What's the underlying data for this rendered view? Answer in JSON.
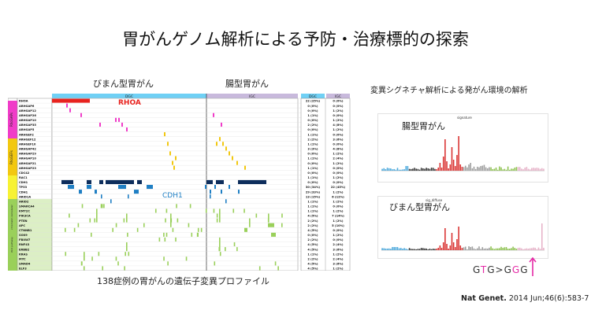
{
  "title": "胃がんゲノム解析による予防・治療標的の探索",
  "left": {
    "header_diffuse": "びまん型胃がん",
    "header_intestinal": "腸型胃がん",
    "caption": "138症例の胃がんの遺伝子変異プロファイル",
    "dgc_label": "DGC",
    "igc_label": "IGC",
    "rhoa_label": "RHOA",
    "cdh1_label": "CDH1",
    "group_labels": [
      "RhoGAPs",
      "RhoGEFs",
      "chromatin remodeler",
      "Wnt pathway"
    ],
    "genes": [
      "RHOA",
      "ARHGAP6",
      "ARHGAP12",
      "ARHGAP26",
      "ARHGAP10",
      "ARHGAP35",
      "ARHGAP5",
      "ARHGEF2",
      "ARHGEF12",
      "ARHGEF10",
      "ARHGAP42",
      "ARHGAP29",
      "ARHGAP10",
      "ARHGAP21",
      "ARHGAP23",
      "CDC42",
      "RAC1",
      "CDH1",
      "TP53",
      "CDH1",
      "ARID1A",
      "ARID2",
      "SMARCA4",
      "KMT2C",
      "PIK3CA",
      "PTEN",
      "APC",
      "CTNNB1",
      "SOX9",
      "FBXW7",
      "RNF43",
      "ERBB2",
      "KRAS",
      "MYC",
      "SMAD4",
      "ELF3"
    ],
    "dgc_counts": [
      "22 (25%)",
      "0 (0%)",
      "0 (0%)",
      "1 (1%)",
      "0 (0%)",
      "2 (2%)",
      "0 (0%)",
      "1 (1%)",
      "2 (2%)",
      "1 (1%)",
      "3 (3%)",
      "0 (0%)",
      "1 (1%)",
      "0 (0%)",
      "1 (1%)",
      "0 (0%)",
      "1 (1%)",
      "0 (0%)",
      "30 (34%)",
      "29 (33%)",
      "13 (15%)",
      "1 (1%)",
      "1 (1%)",
      "1 (1%)",
      "4 (5%)",
      "2 (2%)",
      "2 (2%)",
      "4 (5%)",
      "0 (0%)",
      "2 (2%)",
      "4 (5%)",
      "4 (5%)",
      "1 (1%)",
      "2 (2%)",
      "4 (5%)",
      "4 (5%)"
    ],
    "igc_counts": [
      "0 (0%)",
      "0 (0%)",
      "1 (2%)",
      "0 (0%)",
      "1 (2%)",
      "4 (8%)",
      "1 (2%)",
      "0 (0%)",
      "3 (6%)",
      "0 (0%)",
      "4 (8%)",
      "1 (2%)",
      "2 (4%)",
      "1 (2%)",
      "0 (0%)",
      "0 (0%)",
      "1 (2%)",
      "0 (0%)",
      "22 (45%)",
      "1 (2%)",
      "6 (12%)",
      "1 (2%)",
      "0 (0%)",
      "1 (2%)",
      "7 (14%)",
      "1 (2%)",
      "5 (10%)",
      "0 (0%)",
      "1 (2%)",
      "0 (0%)",
      "2 (4%)",
      "3 (6%)",
      "1 (2%)",
      "2 (4%)",
      "3 (6%)",
      "1 (2%)"
    ]
  },
  "right": {
    "header": "変異シグネチャ解析による発がん環境の解析",
    "panel1_label": "腸型胃がん",
    "panel1_tiny_title": "signature",
    "panel2_label": "びまん型胃がん",
    "panel2_tiny_title": "sig_diffuse",
    "pattern_g1": "G",
    "pattern_t": "T",
    "pattern_g2": "G>G",
    "pattern_g3": "G",
    "pattern_g4": "G",
    "citation_bold": "Nat Genet.",
    "citation_rest": " 2014 Jun;46(6):583-7"
  },
  "colors": {
    "rhoa": "#e8231f",
    "cdh1": "#1f7fc4",
    "rhogap": "#f03cc8",
    "rhogef": "#f2c811",
    "yellow": "#f7f233",
    "green": "#9ad05a",
    "navy": "#0d2d5c",
    "dgc_header": "#6fd0f5",
    "igc_header": "#c8b9dc",
    "magenta": "#e52aa6"
  }
}
